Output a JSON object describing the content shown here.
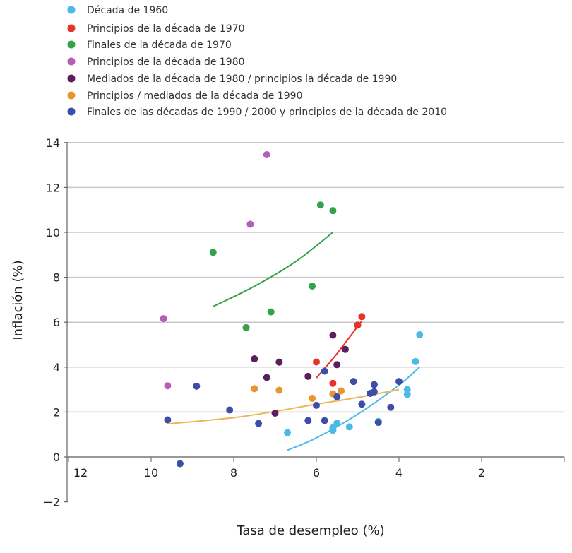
{
  "chart_data": {
    "type": "scatter",
    "xlabel": "Tasa de desempleo (%)",
    "ylabel": "Inflación (%)",
    "xlim": [
      12,
      0
    ],
    "ylim": [
      -2,
      14
    ],
    "x_reversed": true,
    "x_ticks": [
      12,
      10,
      8,
      6,
      4,
      2
    ],
    "y_ticks": [
      -2,
      0,
      2,
      4,
      6,
      8,
      10,
      12,
      14
    ],
    "y_tick_labels": [
      "−2",
      "0",
      "2",
      "4",
      "6",
      "8",
      "10",
      "12",
      "14"
    ],
    "grid": "horizontal",
    "legend_position": "top-left",
    "series": [
      {
        "name": "Década de 1960",
        "color": "#4db9e6",
        "points": [
          [
            6.7,
            1.08
          ],
          [
            5.6,
            1.19
          ],
          [
            5.6,
            1.3
          ],
          [
            5.5,
            1.51
          ],
          [
            5.2,
            1.34
          ],
          [
            4.5,
            1.58
          ],
          [
            4.5,
            1.54
          ],
          [
            3.8,
            3.0
          ],
          [
            3.8,
            2.79
          ],
          [
            3.6,
            4.25
          ],
          [
            3.5,
            5.44
          ]
        ],
        "trend": [
          [
            6.7,
            0.3
          ],
          [
            6.0,
            0.85
          ],
          [
            5.0,
            1.9
          ],
          [
            4.0,
            3.2
          ],
          [
            3.5,
            4.0
          ]
        ]
      },
      {
        "name": "Principios de la década de 1970",
        "color": "#e8312a",
        "points": [
          [
            6.0,
            4.23
          ],
          [
            5.6,
            3.28
          ],
          [
            5.0,
            5.87
          ],
          [
            4.9,
            6.25
          ]
        ],
        "trend": [
          [
            6.0,
            3.52
          ],
          [
            5.5,
            4.6
          ],
          [
            4.9,
            6.06
          ]
        ]
      },
      {
        "name": "Finales de la década de 1970",
        "color": "#34a24a",
        "points": [
          [
            8.5,
            9.11
          ],
          [
            7.7,
            5.76
          ],
          [
            7.1,
            6.46
          ],
          [
            6.1,
            7.61
          ],
          [
            5.9,
            11.22
          ],
          [
            5.6,
            10.97
          ]
        ],
        "trend": [
          [
            8.5,
            6.7
          ],
          [
            7.5,
            7.6
          ],
          [
            6.5,
            8.7
          ],
          [
            5.6,
            10.0
          ]
        ]
      },
      {
        "name": "Principios de la década de 1980",
        "color": "#b65db8",
        "points": [
          [
            7.2,
            13.46
          ],
          [
            7.6,
            10.36
          ],
          [
            9.7,
            6.16
          ],
          [
            9.6,
            3.17
          ]
        ]
      },
      {
        "name": "Mediados de la década de 1980 / principios la década de 1990",
        "color": "#5b1f5e",
        "points": [
          [
            5.6,
            5.42
          ],
          [
            5.3,
            4.79
          ],
          [
            7.5,
            4.37
          ],
          [
            6.9,
            4.22
          ],
          [
            5.5,
            4.11
          ],
          [
            7.2,
            3.54
          ],
          [
            6.2,
            3.59
          ],
          [
            7.0,
            1.95
          ]
        ]
      },
      {
        "name": "Principios / mediados de la década de 1990",
        "color": "#e8952c",
        "points": [
          [
            7.5,
            3.04
          ],
          [
            6.9,
            2.97
          ],
          [
            6.1,
            2.61
          ],
          [
            5.6,
            2.81
          ],
          [
            5.4,
            2.94
          ]
        ],
        "trend": [
          [
            9.6,
            1.47
          ],
          [
            8,
            1.75
          ],
          [
            7,
            2.03
          ],
          [
            6,
            2.35
          ],
          [
            5,
            2.65
          ],
          [
            4,
            3.0
          ]
        ],
        "trend_color": "#ecb657"
      },
      {
        "name": "Finales de las décadas de 1990 / 2000 y principios de la década de 2010",
        "color": "#3d4ea8",
        "points": [
          [
            9.6,
            1.65
          ],
          [
            8.9,
            3.15
          ],
          [
            9.3,
            -0.3
          ],
          [
            8.1,
            2.09
          ],
          [
            7.4,
            1.49
          ],
          [
            6.2,
            1.62
          ],
          [
            5.8,
            1.62
          ],
          [
            6.0,
            2.3
          ],
          [
            5.8,
            3.82
          ],
          [
            5.5,
            2.68
          ],
          [
            5.1,
            3.36
          ],
          [
            4.9,
            2.35
          ],
          [
            4.7,
            2.83
          ],
          [
            4.6,
            2.9
          ],
          [
            4.6,
            3.22
          ],
          [
            4.5,
            1.54
          ],
          [
            4.2,
            2.21
          ],
          [
            4.0,
            3.36
          ]
        ]
      }
    ]
  }
}
